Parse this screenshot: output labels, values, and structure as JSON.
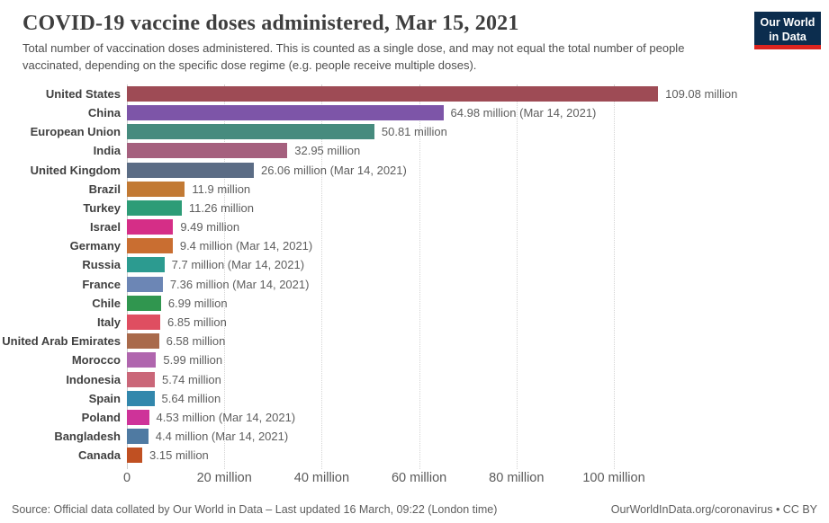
{
  "header": {
    "title": "COVID-19 vaccine doses administered, Mar 15, 2021",
    "subtitle": "Total number of vaccination doses administered. This is counted as a single dose, and may not equal the total number of people vaccinated, depending on the specific dose regime (e.g. people receive multiple doses).",
    "logo": {
      "line1": "Our World",
      "line2": "in Data",
      "bg_color": "#0c2d4e",
      "accent_color": "#dc241f"
    }
  },
  "chart_data": {
    "type": "bar",
    "orientation": "horizontal",
    "title": "COVID-19 vaccine doses administered, Mar 15, 2021",
    "xlim": [
      0,
      120
    ],
    "grid": "vertical-dotted",
    "unit": "million doses",
    "categories": [
      "United States",
      "China",
      "European Union",
      "India",
      "United Kingdom",
      "Brazil",
      "Turkey",
      "Israel",
      "Germany",
      "Russia",
      "France",
      "Chile",
      "Italy",
      "United Arab Emirates",
      "Morocco",
      "Indonesia",
      "Spain",
      "Poland",
      "Bangladesh",
      "Canada"
    ],
    "values": [
      109.08,
      64.98,
      50.81,
      32.95,
      26.06,
      11.9,
      11.26,
      9.49,
      9.4,
      7.7,
      7.36,
      6.99,
      6.85,
      6.58,
      5.99,
      5.74,
      5.64,
      4.53,
      4.4,
      3.15
    ],
    "value_labels": [
      "109.08 million",
      "64.98 million (Mar 14, 2021)",
      "50.81 million",
      "32.95 million",
      "26.06 million (Mar 14, 2021)",
      "11.9 million",
      "11.26 million",
      "9.49 million",
      "9.4 million (Mar 14, 2021)",
      "7.7 million (Mar 14, 2021)",
      "7.36 million (Mar 14, 2021)",
      "6.99 million",
      "6.85 million",
      "6.58 million",
      "5.99 million",
      "5.74 million",
      "5.64 million",
      "4.53 million (Mar 14, 2021)",
      "4.4 million (Mar 14, 2021)",
      "3.15 million"
    ],
    "bar_colors": [
      "#9e4b55",
      "#7d55a8",
      "#468b7e",
      "#a5607e",
      "#5b6c85",
      "#c27a34",
      "#2d9c77",
      "#d52e87",
      "#c96e31",
      "#2c9b90",
      "#6c86b5",
      "#30964f",
      "#df4e61",
      "#a96a4b",
      "#b066ae",
      "#ca6779",
      "#3287ac",
      "#ce3399",
      "#4f7aa2",
      "#c05022"
    ],
    "x_ticks": [
      {
        "value": 0,
        "label": "0"
      },
      {
        "value": 20,
        "label": "20 million"
      },
      {
        "value": 40,
        "label": "40 million"
      },
      {
        "value": 60,
        "label": "60 million"
      },
      {
        "value": 80,
        "label": "80 million"
      },
      {
        "value": 100,
        "label": "100 million"
      }
    ]
  },
  "footer": {
    "source": "Source: Official data collated by Our World in Data – Last updated 16 March, 09:22 (London time)",
    "link": "OurWorldInData.org/coronavirus • CC BY"
  }
}
